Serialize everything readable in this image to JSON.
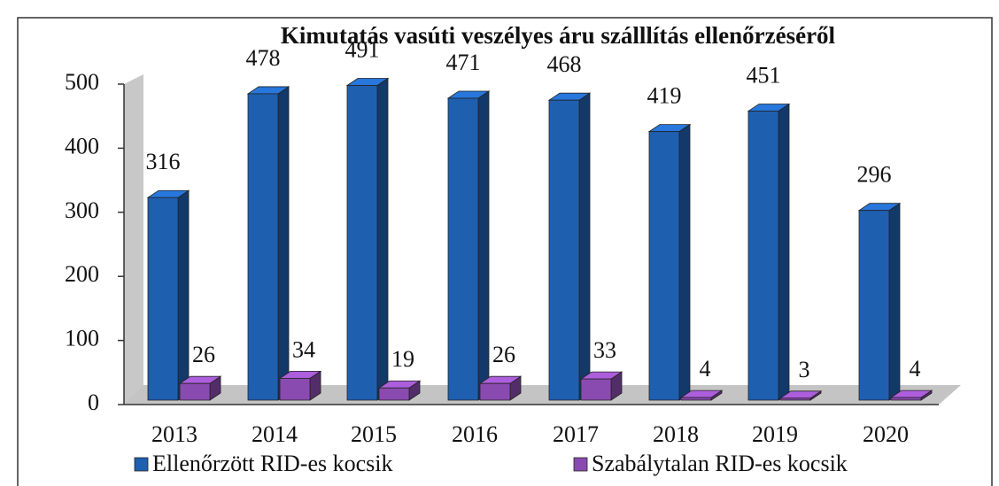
{
  "chart_data": {
    "type": "bar3d",
    "title": "Kimutatás vasúti veszélyes áru szálllítás ellenőrzéséről",
    "categories": [
      "2013",
      "2014",
      "2015",
      "2016",
      "2017",
      "2018",
      "2019",
      "2020"
    ],
    "series": [
      {
        "name": "Ellenőrzött RID-es kocsik",
        "color": "#1f5fb0",
        "values": [
          316,
          478,
          491,
          471,
          468,
          419,
          451,
          296
        ]
      },
      {
        "name": "Szabálytalan RID-es kocsik",
        "color": "#8a4bb0",
        "values": [
          26,
          34,
          19,
          26,
          33,
          4,
          3,
          4
        ]
      }
    ],
    "ylim": [
      0,
      500
    ],
    "yticks": [
      0,
      100,
      200,
      300,
      400,
      500
    ],
    "grid": false,
    "legend": "bottom"
  }
}
